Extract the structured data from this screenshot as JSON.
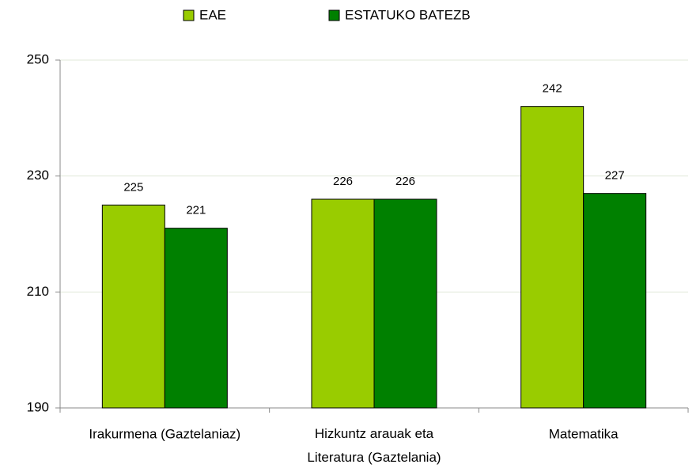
{
  "chart_data": {
    "type": "bar",
    "categories": [
      "Irakurmena (Gaztelaniaz)",
      "Hizkuntz arauak eta\nLiteratura (Gaztelania)",
      "Matematika"
    ],
    "series": [
      {
        "name": "EAE",
        "color": "#99cc00",
        "values": [
          225,
          226,
          242
        ]
      },
      {
        "name": "ESTATUKO BATEZB",
        "color": "#008000",
        "values": [
          221,
          226,
          227
        ]
      }
    ],
    "ylim": [
      190,
      250
    ],
    "yticks": [
      190,
      210,
      230,
      250
    ],
    "grid": true,
    "legend": "top"
  }
}
